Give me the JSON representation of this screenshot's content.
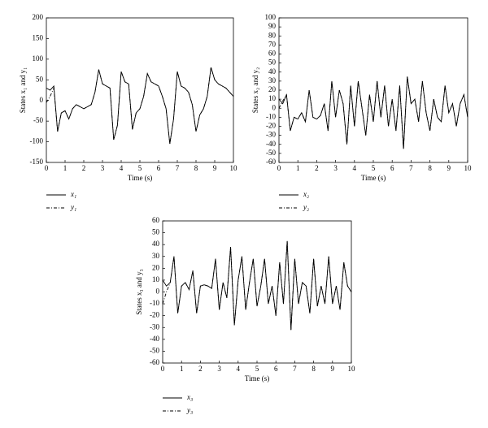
{
  "chart_data": [
    {
      "type": "line",
      "xlabel": "Time (s)",
      "ylabel": "States x₁ and y₁",
      "xlim": [
        0,
        10
      ],
      "xticks": [
        0,
        1,
        2,
        3,
        4,
        5,
        6,
        7,
        8,
        9,
        10
      ],
      "ylim": [
        -150,
        200
      ],
      "yticks": [
        -150,
        -100,
        -50,
        0,
        50,
        100,
        150,
        200
      ],
      "x": [
        0,
        0.2,
        0.4,
        0.6,
        0.8,
        1,
        1.2,
        1.4,
        1.6,
        1.8,
        2,
        2.2,
        2.4,
        2.6,
        2.8,
        3,
        3.2,
        3.4,
        3.6,
        3.8,
        4,
        4.2,
        4.4,
        4.6,
        4.8,
        5,
        5.2,
        5.4,
        5.6,
        5.8,
        6,
        6.2,
        6.4,
        6.6,
        6.8,
        7,
        7.2,
        7.4,
        7.6,
        7.8,
        8,
        8.2,
        8.4,
        8.6,
        8.8,
        9,
        9.2,
        9.4,
        9.6,
        9.8,
        10
      ],
      "series": [
        {
          "name": "x₁",
          "color": "#000000",
          "line_style": "solid",
          "values": [
            30,
            25,
            35,
            -75,
            -30,
            -25,
            -45,
            -20,
            -10,
            -15,
            -20,
            -15,
            -10,
            20,
            75,
            40,
            35,
            30,
            -95,
            -60,
            70,
            45,
            40,
            -70,
            -30,
            -20,
            10,
            65,
            45,
            40,
            35,
            10,
            -20,
            -105,
            -45,
            70,
            35,
            30,
            20,
            -10,
            -75,
            -35,
            -20,
            10,
            80,
            50,
            40,
            35,
            30,
            20,
            10
          ]
        },
        {
          "name": "y₁",
          "color": "#000000",
          "line_style": "dashdot",
          "values": [
            -5,
            10,
            30,
            -75,
            -30,
            -25,
            -45,
            -20,
            -10,
            -15,
            -20,
            -15,
            -10,
            20,
            75,
            40,
            35,
            30,
            -95,
            -60,
            70,
            45,
            40,
            -70,
            -30,
            -20,
            10,
            65,
            45,
            40,
            35,
            10,
            -20,
            -105,
            -45,
            70,
            35,
            30,
            20,
            -10,
            -75,
            -35,
            -20,
            10,
            80,
            50,
            40,
            35,
            30,
            20,
            10
          ]
        }
      ]
    },
    {
      "type": "line",
      "xlabel": "Time (s)",
      "ylabel": "States x₂ and y₂",
      "xlim": [
        0,
        10
      ],
      "xticks": [
        0,
        1,
        2,
        3,
        4,
        5,
        6,
        7,
        8,
        9,
        10
      ],
      "ylim": [
        -60,
        100
      ],
      "yticks": [
        -60,
        -50,
        -40,
        -30,
        -20,
        -10,
        0,
        10,
        20,
        30,
        40,
        50,
        60,
        70,
        80,
        90,
        100
      ],
      "x": [
        0,
        0.2,
        0.4,
        0.6,
        0.8,
        1,
        1.2,
        1.4,
        1.6,
        1.8,
        2,
        2.2,
        2.4,
        2.6,
        2.8,
        3,
        3.2,
        3.4,
        3.6,
        3.8,
        4,
        4.2,
        4.4,
        4.6,
        4.8,
        5,
        5.2,
        5.4,
        5.6,
        5.8,
        6,
        6.2,
        6.4,
        6.6,
        6.8,
        7,
        7.2,
        7.4,
        7.6,
        7.8,
        8,
        8.2,
        8.4,
        8.6,
        8.8,
        9,
        9.2,
        9.4,
        9.6,
        9.8,
        10
      ],
      "series": [
        {
          "name": "x₂",
          "color": "#000000",
          "line_style": "solid",
          "values": [
            10,
            5,
            15,
            -25,
            -10,
            -12,
            -5,
            -15,
            20,
            -10,
            -12,
            -8,
            5,
            -25,
            30,
            -10,
            20,
            5,
            -40,
            25,
            -20,
            30,
            0,
            -30,
            15,
            -15,
            30,
            -10,
            25,
            -20,
            10,
            -25,
            25,
            -45,
            35,
            5,
            10,
            -15,
            30,
            -5,
            -25,
            10,
            -10,
            -15,
            25,
            -5,
            5,
            -20,
            5,
            15,
            -10
          ]
        },
        {
          "name": "y₂",
          "color": "#000000",
          "line_style": "dashdot",
          "values": [
            0,
            8,
            15,
            -25,
            -10,
            -12,
            -5,
            -15,
            20,
            -10,
            -12,
            -8,
            5,
            -25,
            30,
            -10,
            20,
            5,
            -40,
            25,
            -20,
            30,
            0,
            -30,
            15,
            -15,
            30,
            -10,
            25,
            -20,
            10,
            -25,
            25,
            -45,
            35,
            5,
            10,
            -15,
            30,
            -5,
            -25,
            10,
            -10,
            -15,
            25,
            -5,
            5,
            -20,
            5,
            15,
            -10
          ]
        }
      ]
    },
    {
      "type": "line",
      "xlabel": "Time (s)",
      "ylabel": "States x₃ and y₃",
      "xlim": [
        0,
        10
      ],
      "xticks": [
        0,
        1,
        2,
        3,
        4,
        5,
        6,
        7,
        8,
        9,
        10
      ],
      "ylim": [
        -60,
        60
      ],
      "yticks": [
        -60,
        -50,
        -40,
        -30,
        -20,
        -10,
        0,
        10,
        20,
        30,
        40,
        50,
        60
      ],
      "x": [
        0,
        0.2,
        0.4,
        0.6,
        0.8,
        1,
        1.2,
        1.4,
        1.6,
        1.8,
        2,
        2.2,
        2.4,
        2.6,
        2.8,
        3,
        3.2,
        3.4,
        3.6,
        3.8,
        4,
        4.2,
        4.4,
        4.6,
        4.8,
        5,
        5.2,
        5.4,
        5.6,
        5.8,
        6,
        6.2,
        6.4,
        6.6,
        6.8,
        7,
        7.2,
        7.4,
        7.6,
        7.8,
        8,
        8.2,
        8.4,
        8.6,
        8.8,
        9,
        9.2,
        9.4,
        9.6,
        9.8,
        10
      ],
      "series": [
        {
          "name": "x₃",
          "color": "#000000",
          "line_style": "solid",
          "values": [
            10,
            5,
            8,
            30,
            -18,
            5,
            8,
            2,
            18,
            -18,
            5,
            6,
            5,
            3,
            28,
            -15,
            8,
            -5,
            38,
            -28,
            10,
            30,
            -15,
            8,
            28,
            -12,
            5,
            28,
            -10,
            5,
            -20,
            25,
            -10,
            43,
            -32,
            28,
            -10,
            8,
            5,
            -18,
            28,
            -12,
            5,
            -10,
            30,
            -10,
            5,
            -15,
            25,
            5,
            0
          ]
        },
        {
          "name": "y₃",
          "color": "#000000",
          "line_style": "dashdot",
          "values": [
            -10,
            0,
            8,
            30,
            -18,
            5,
            8,
            2,
            18,
            -18,
            5,
            6,
            5,
            3,
            28,
            -15,
            8,
            -5,
            38,
            -28,
            10,
            30,
            -15,
            8,
            28,
            -12,
            5,
            28,
            -10,
            5,
            -20,
            25,
            -10,
            43,
            -32,
            28,
            -10,
            8,
            5,
            -18,
            28,
            -12,
            5,
            -10,
            30,
            -10,
            5,
            -15,
            25,
            5,
            0
          ]
        }
      ]
    }
  ]
}
